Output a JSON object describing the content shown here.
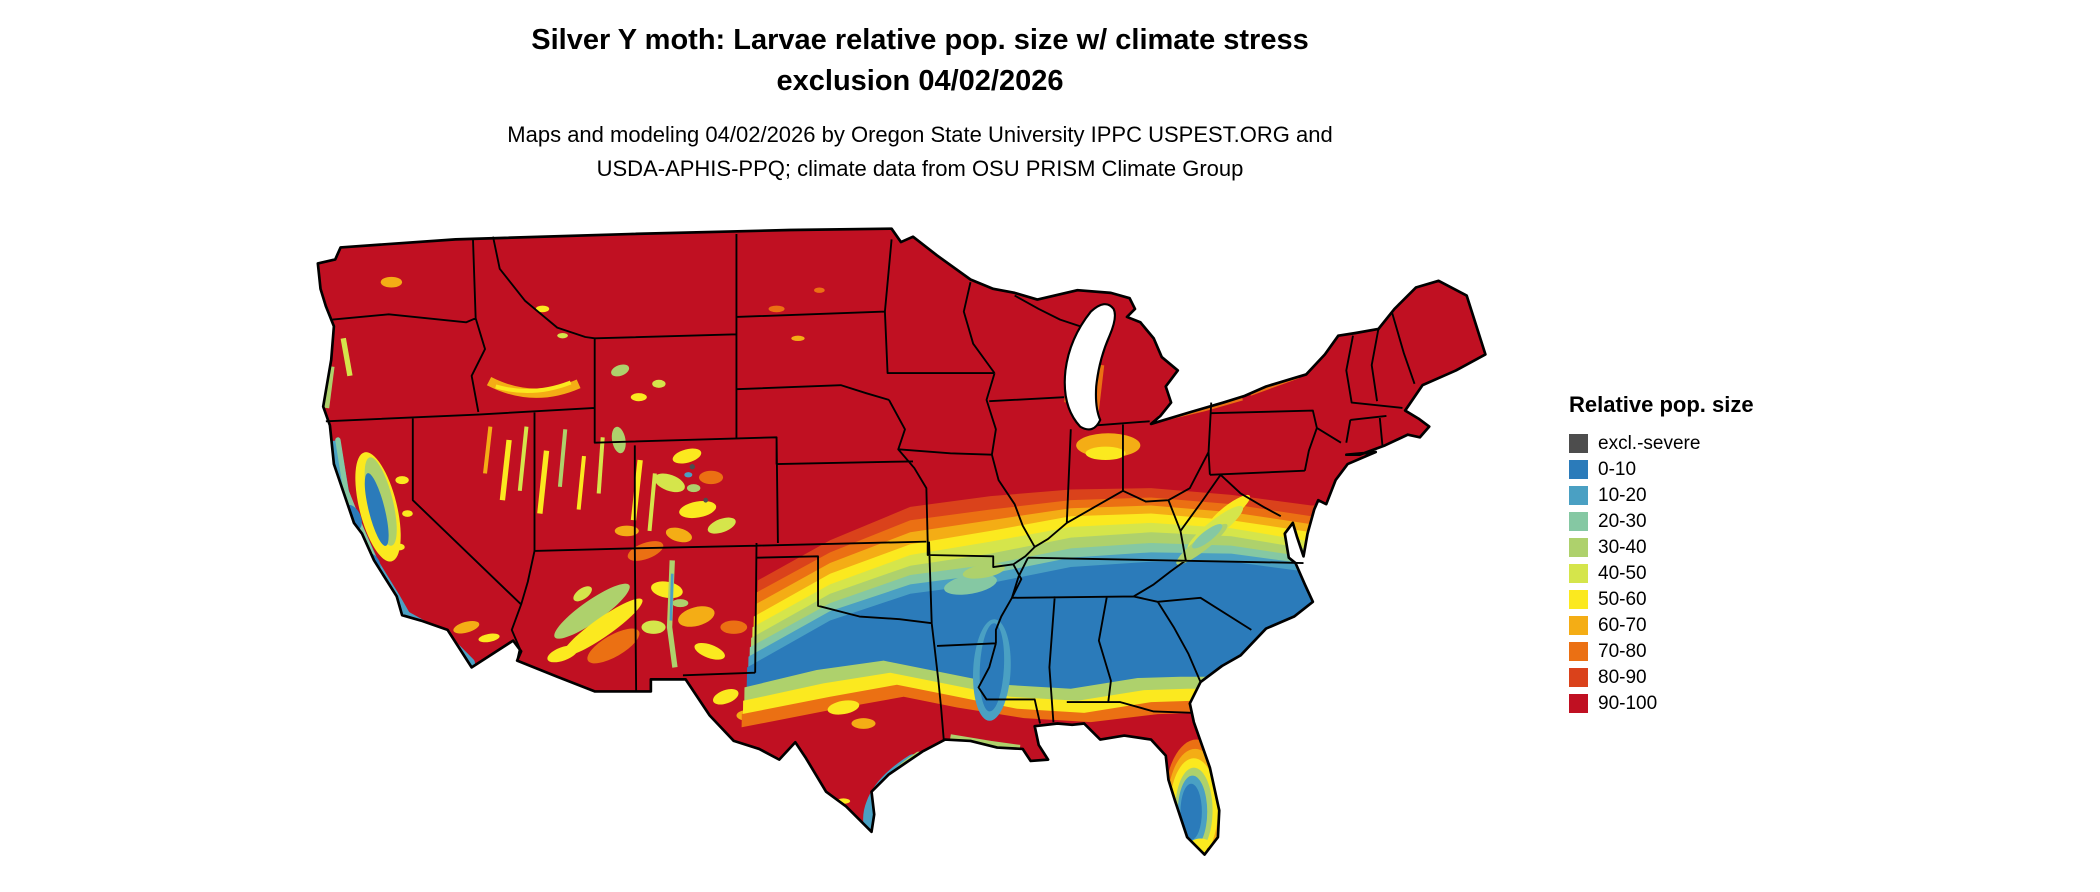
{
  "header": {
    "title_line1": "Silver Y moth: Larvae relative pop. size w/ climate stress",
    "title_line2": "exclusion 04/02/2026",
    "credit_line1": "Maps and modeling 04/02/2026 by Oregon State University IPPC USPEST.ORG and",
    "credit_line2": "USDA-APHIS-PPQ; climate data from OSU PRISM Climate Group"
  },
  "map": {
    "region": "Continental United States",
    "variable": "Larvae relative population size with climate stress exclusion",
    "date": "04/02/2026",
    "colors": {
      "ink": "#000000",
      "water": "#ffffff"
    }
  },
  "legend": {
    "title": "Relative pop. size",
    "items": [
      {
        "key": "excl",
        "label": "excl.-severe",
        "color": "#4d4d4d"
      },
      {
        "key": "b0",
        "label": "0-10",
        "color": "#2b7bba"
      },
      {
        "key": "b10",
        "label": "10-20",
        "color": "#4aa0c3"
      },
      {
        "key": "b20",
        "label": "20-30",
        "color": "#85c8a3"
      },
      {
        "key": "b30",
        "label": "30-40",
        "color": "#aed16c"
      },
      {
        "key": "b40",
        "label": "40-50",
        "color": "#d5e54b"
      },
      {
        "key": "b50",
        "label": "50-60",
        "color": "#fbe91f"
      },
      {
        "key": "b60",
        "label": "60-70",
        "color": "#f4ad15"
      },
      {
        "key": "b70",
        "label": "70-80",
        "color": "#eb7013"
      },
      {
        "key": "b80",
        "label": "80-90",
        "color": "#da421b"
      },
      {
        "key": "b90",
        "label": "90-100",
        "color": "#c01022"
      }
    ]
  }
}
